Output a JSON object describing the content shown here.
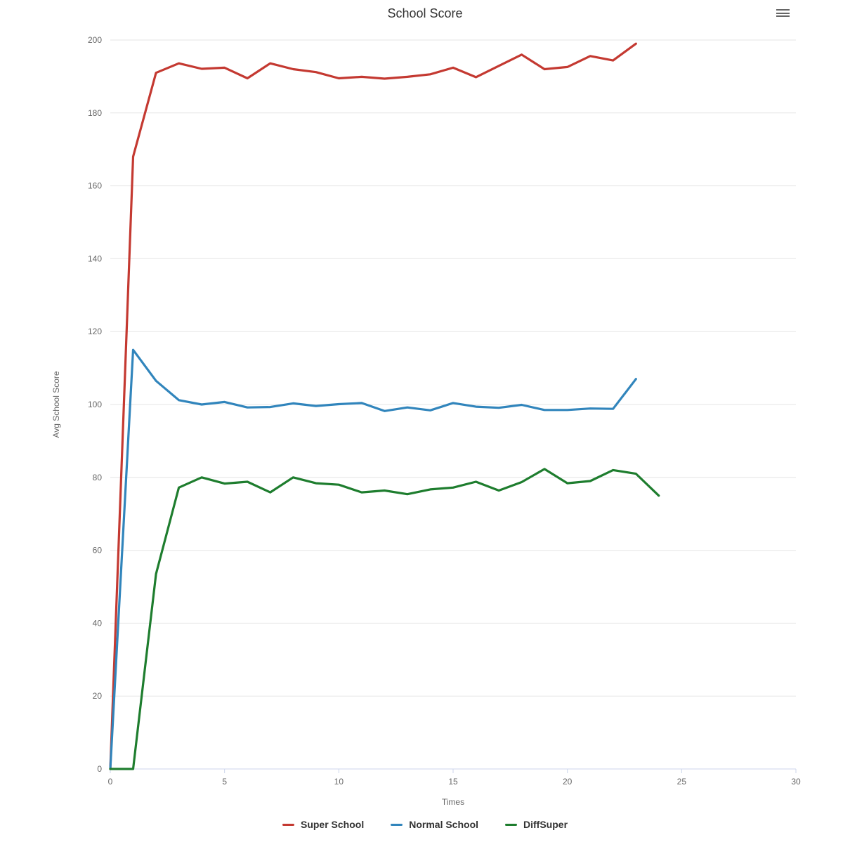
{
  "header": {
    "title": "School Score",
    "menu_button": "hamburger-menu"
  },
  "colors": {
    "title_text": "#333333",
    "tick_label_text": "#666666",
    "axis_title_text": "#666666",
    "legend_text": "#333333",
    "gridline": "#e6e6e6",
    "axis_line": "#ccd6eb",
    "series_red": "#c43931",
    "series_blue": "#3185bc",
    "series_green": "#1e7d2e"
  },
  "chart_data": {
    "type": "line",
    "title": "School Score",
    "xlabel": "Times",
    "ylabel": "Avg School Score",
    "xlim": [
      0,
      30
    ],
    "ylim": [
      0,
      200
    ],
    "xticks": [
      0,
      5,
      10,
      15,
      20,
      25,
      30
    ],
    "yticks": [
      0,
      20,
      40,
      60,
      80,
      100,
      120,
      140,
      160,
      180,
      200
    ],
    "grid": "horizontal-only",
    "legend_position": "bottom-center",
    "series": [
      {
        "name": "Super School",
        "color": "#c43931",
        "x": [
          0,
          1,
          2,
          3,
          4,
          5,
          6,
          7,
          8,
          9,
          10,
          11,
          12,
          13,
          14,
          15,
          16,
          17,
          18,
          19,
          20,
          21,
          22,
          23
        ],
        "values": [
          0,
          168,
          191,
          193.6,
          192.1,
          192.4,
          189.5,
          193.6,
          192,
          191.2,
          189.5,
          189.9,
          189.4,
          189.9,
          190.6,
          192.4,
          189.8,
          192.9,
          196,
          192,
          192.6,
          195.6,
          194.4,
          199
        ]
      },
      {
        "name": "Normal School",
        "color": "#3185bc",
        "x": [
          0,
          1,
          2,
          3,
          4,
          5,
          6,
          7,
          8,
          9,
          10,
          11,
          12,
          13,
          14,
          15,
          16,
          17,
          18,
          19,
          20,
          21,
          22,
          23
        ],
        "values": [
          0,
          115,
          106.5,
          101.2,
          100,
          100.7,
          99.2,
          99.3,
          100.3,
          99.6,
          100.1,
          100.4,
          98.2,
          99.2,
          98.4,
          100.4,
          99.4,
          99.1,
          99.9,
          98.5,
          98.5,
          98.9,
          98.8,
          107
        ]
      },
      {
        "name": "DiffSuper",
        "color": "#1e7d2e",
        "x": [
          0,
          1,
          2,
          3,
          4,
          5,
          6,
          7,
          8,
          9,
          10,
          11,
          12,
          13,
          14,
          15,
          16,
          17,
          18,
          19,
          20,
          21,
          22,
          23,
          24
        ],
        "values": [
          0,
          0,
          53.5,
          77.2,
          80,
          78.3,
          78.8,
          75.9,
          80,
          78.4,
          78,
          75.9,
          76.4,
          75.4,
          76.7,
          77.2,
          78.8,
          76.4,
          78.7,
          82.3,
          78.4,
          79,
          82,
          81,
          75
        ]
      }
    ]
  }
}
